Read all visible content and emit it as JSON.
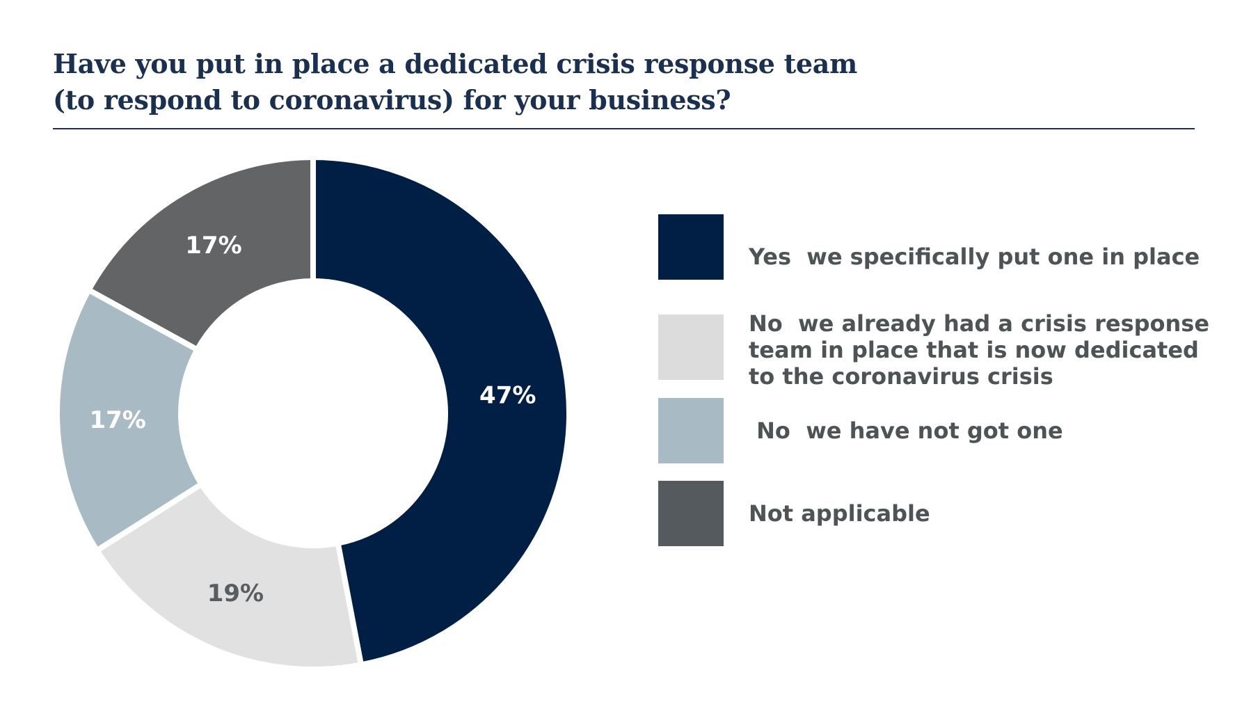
{
  "title_lines": [
    "Have you put in place a dedicated crisis response team",
    "(to respond to coronavirus) for your business?"
  ],
  "colors": {
    "title": "#1b2f4f",
    "legend_text": "#4e5356"
  },
  "chart_data": {
    "type": "pie",
    "donut": true,
    "title": "Have you put in place a dedicated crisis response team (to respond to coronavirus) for your business?",
    "legend_position": "right",
    "slices": [
      {
        "label": "Yes  we specifically put one in place",
        "value": 47,
        "display": "47%",
        "color": "#011f45",
        "text_color": "#ffffff"
      },
      {
        "label": "No  we already had a crisis response\nteam in place that is now dedicated\nto the coronavirus crisis",
        "value": 19,
        "display": "19%",
        "color": "#e1e1e2",
        "text_color": "#595d60"
      },
      {
        "label": " No  we have not got one",
        "value": 17,
        "display": "17%",
        "color": "#a8bbc5",
        "text_color": "#ffffff"
      },
      {
        "label": "Not applicable",
        "value": 17,
        "display": "17%",
        "color": "#636466",
        "text_color": "#ffffff"
      }
    ],
    "legend_swatch_colors": [
      "#011f45",
      "#dcdcdc",
      "#a8bbc5",
      "#545a5d"
    ]
  }
}
